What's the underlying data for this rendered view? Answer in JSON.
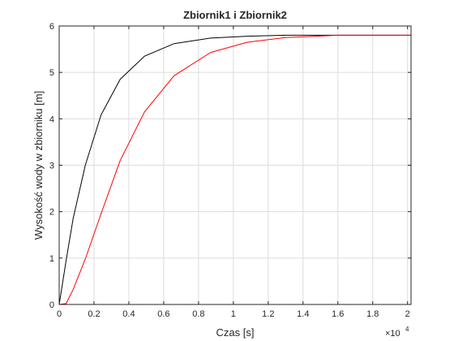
{
  "chart_data": {
    "type": "line",
    "title": "Zbiornik1 i Zbiornik2",
    "xlabel": "Czas [s]",
    "ylabel": "Wysokość wody w zbiorniku [m]",
    "x_exponent_label": "×10",
    "x_exponent_power": "4",
    "xlim": [
      0,
      20200
    ],
    "ylim": [
      0,
      6
    ],
    "grid": true,
    "x_ticks": [
      0,
      2000,
      4000,
      6000,
      8000,
      10000,
      12000,
      14000,
      16000,
      18000,
      20000
    ],
    "x_tick_labels": [
      "0",
      "0.2",
      "0.4",
      "0.6",
      "0.8",
      "1",
      "1.2",
      "1.4",
      "1.6",
      "1.8",
      "2"
    ],
    "y_ticks": [
      0,
      1,
      2,
      3,
      4,
      5,
      6
    ],
    "y_tick_labels": [
      "0",
      "1",
      "2",
      "3",
      "4",
      "5",
      "6"
    ],
    "series": [
      {
        "color": "#000000",
        "x": [
          0,
          400,
          800,
          1500,
          2400,
          3500,
          4900,
          6600,
          8700,
          10800,
          13000,
          16000,
          20200
        ],
        "y": [
          0,
          0.95,
          1.85,
          3.0,
          4.08,
          4.85,
          5.35,
          5.62,
          5.74,
          5.78,
          5.8,
          5.8,
          5.8
        ]
      },
      {
        "color": "#ff0000",
        "x": [
          0,
          400,
          800,
          1500,
          2400,
          3500,
          4900,
          6600,
          8700,
          10800,
          13000,
          16000,
          20200
        ],
        "y": [
          0,
          0.02,
          0.32,
          0.98,
          1.95,
          3.1,
          4.15,
          4.93,
          5.43,
          5.65,
          5.75,
          5.8,
          5.8
        ]
      }
    ]
  }
}
